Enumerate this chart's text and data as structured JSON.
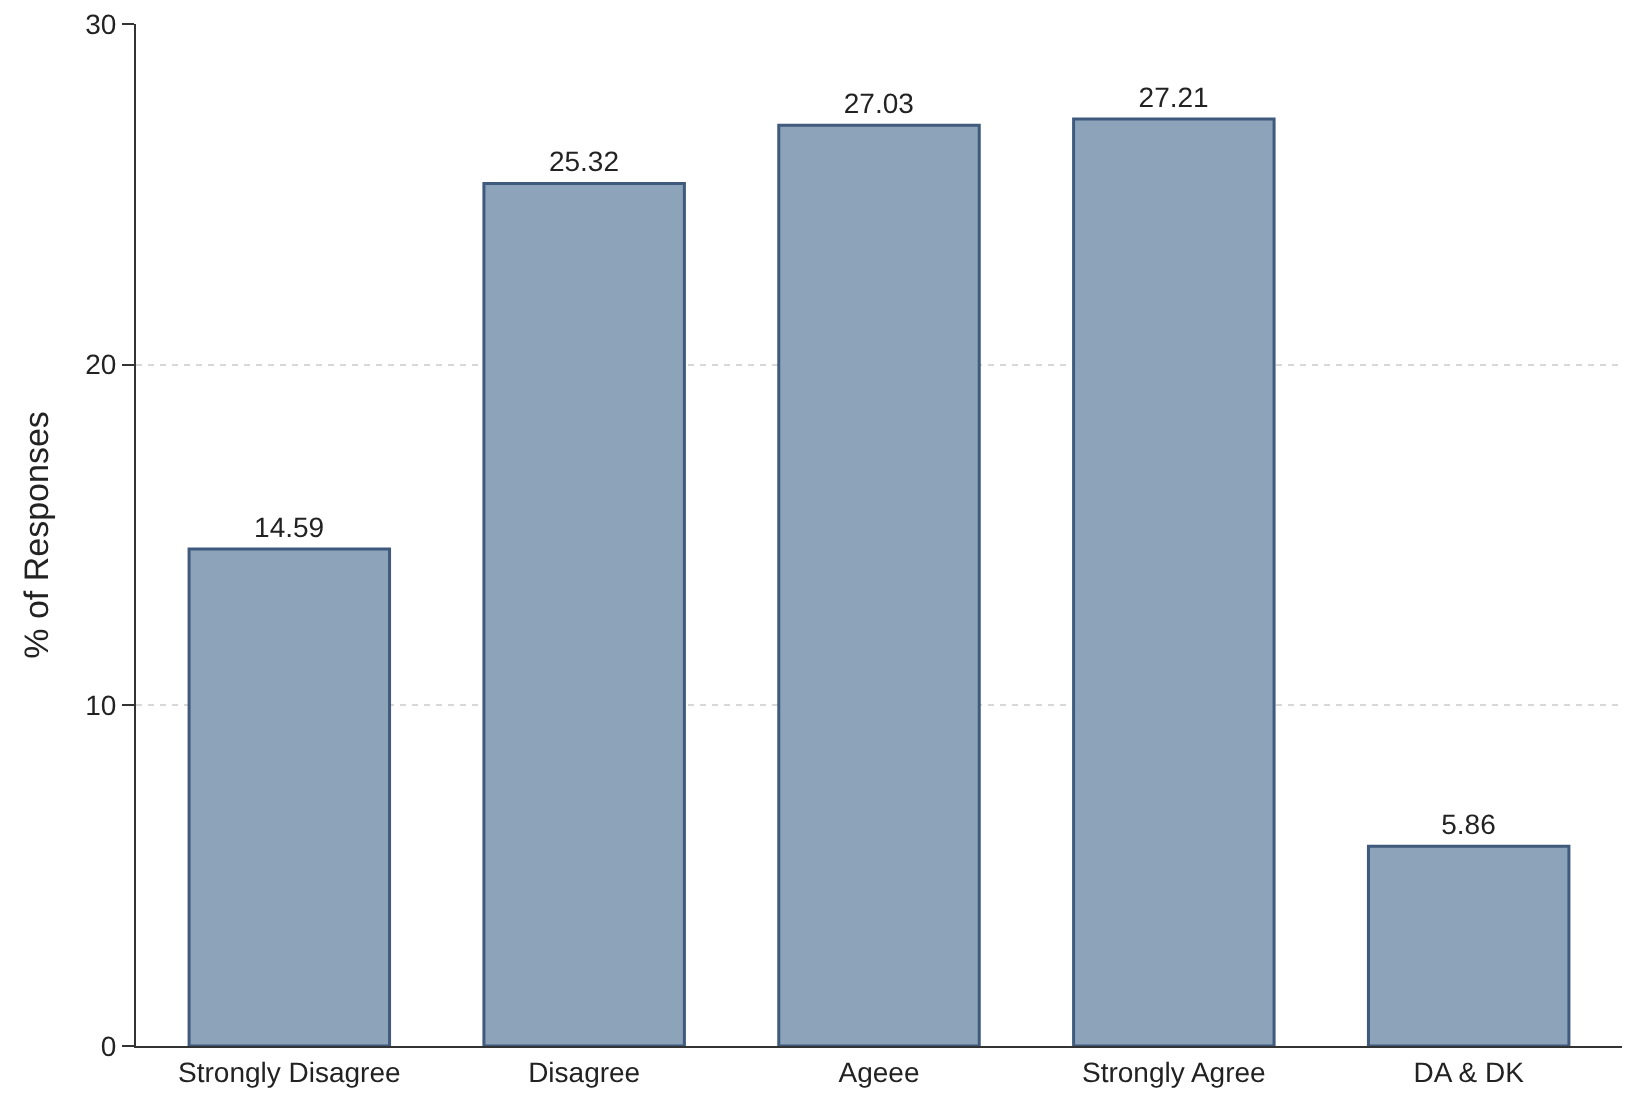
{
  "chart_data": {
    "type": "bar",
    "ylabel": "% of Responses",
    "categories": [
      "Strongly Disagree",
      "Disagree",
      "Ageee",
      "Strongly Agree",
      "DA & DK"
    ],
    "values": [
      14.59,
      25.32,
      27.03,
      27.21,
      5.86
    ],
    "color": "#8da3b9",
    "ylim": [
      0,
      30
    ],
    "yticks": [
      0,
      10,
      20,
      30
    ],
    "grid": "y",
    "data_labels": true
  }
}
